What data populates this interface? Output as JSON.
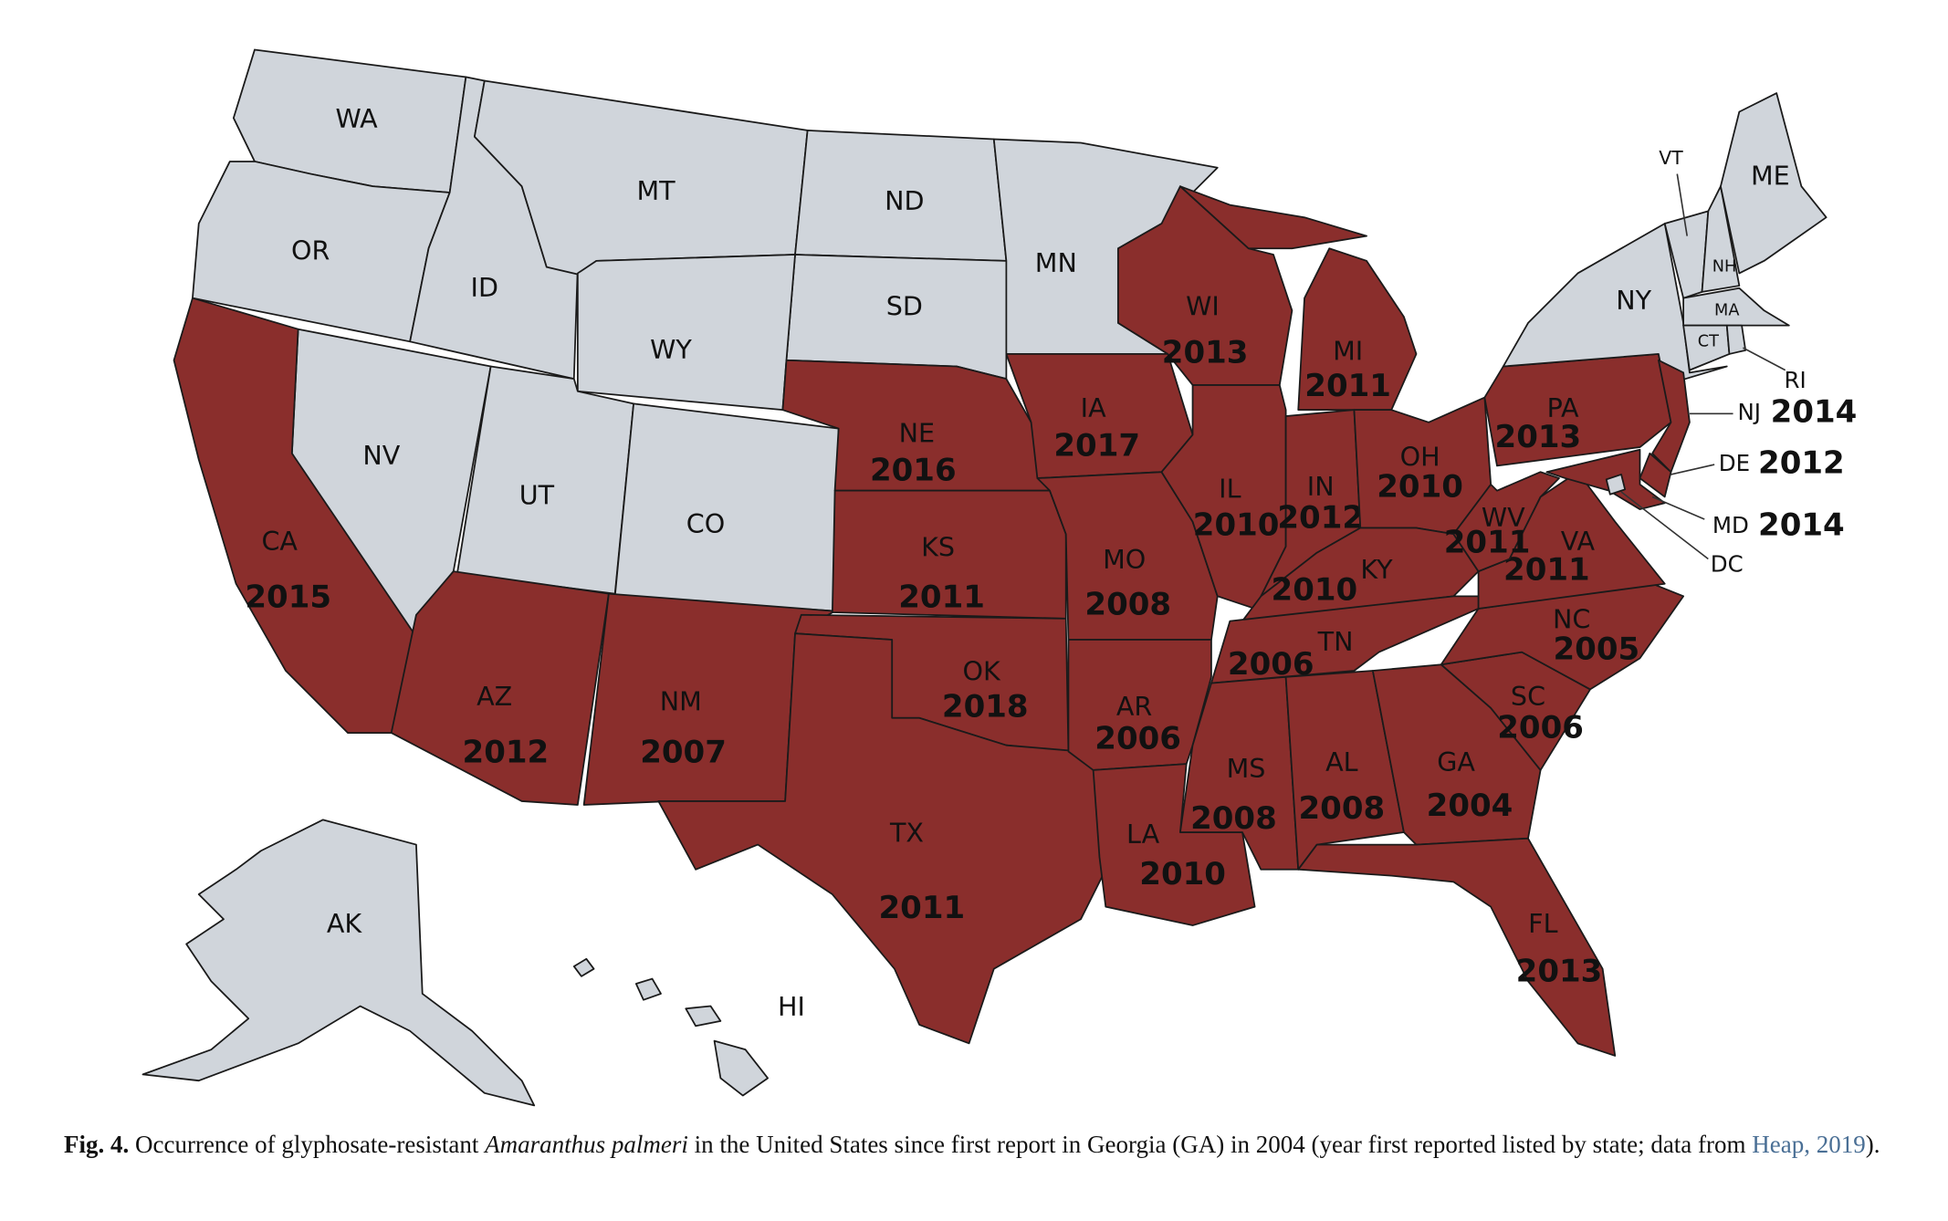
{
  "map": {
    "fill_color": "#8a2e2c",
    "empty_color": "#d0d5db",
    "states": [
      {
        "abbr": "WA"
      },
      {
        "abbr": "OR"
      },
      {
        "abbr": "ID"
      },
      {
        "abbr": "MT"
      },
      {
        "abbr": "ND"
      },
      {
        "abbr": "SD"
      },
      {
        "abbr": "WY"
      },
      {
        "abbr": "NV"
      },
      {
        "abbr": "UT"
      },
      {
        "abbr": "CO"
      },
      {
        "abbr": "CA",
        "year": 2015
      },
      {
        "abbr": "AZ",
        "year": 2012
      },
      {
        "abbr": "NM",
        "year": 2007
      },
      {
        "abbr": "NE",
        "year": 2016
      },
      {
        "abbr": "KS",
        "year": 2011
      },
      {
        "abbr": "OK",
        "year": 2018
      },
      {
        "abbr": "TX",
        "year": 2011
      },
      {
        "abbr": "MN"
      },
      {
        "abbr": "IA",
        "year": 2017
      },
      {
        "abbr": "MO",
        "year": 2008
      },
      {
        "abbr": "AR",
        "year": 2006
      },
      {
        "abbr": "LA",
        "year": 2010
      },
      {
        "abbr": "WI",
        "year": 2013
      },
      {
        "abbr": "IL",
        "year": 2010
      },
      {
        "abbr": "MI",
        "year": 2011
      },
      {
        "abbr": "IN",
        "year": 2012
      },
      {
        "abbr": "OH",
        "year": 2010
      },
      {
        "abbr": "KY",
        "year": 2010
      },
      {
        "abbr": "TN",
        "year": 2006
      },
      {
        "abbr": "MS",
        "year": 2008
      },
      {
        "abbr": "AL",
        "year": 2008
      },
      {
        "abbr": "GA",
        "year": 2004
      },
      {
        "abbr": "FL",
        "year": 2013
      },
      {
        "abbr": "SC",
        "year": 2006
      },
      {
        "abbr": "NC",
        "year": 2005
      },
      {
        "abbr": "VA",
        "year": 2011
      },
      {
        "abbr": "WV",
        "year": 2011
      },
      {
        "abbr": "PA",
        "year": 2013
      },
      {
        "abbr": "NY"
      },
      {
        "abbr": "NJ",
        "year": 2014
      },
      {
        "abbr": "DE",
        "year": 2012
      },
      {
        "abbr": "MD",
        "year": 2014
      },
      {
        "abbr": "DC"
      },
      {
        "abbr": "VT"
      },
      {
        "abbr": "NH"
      },
      {
        "abbr": "ME"
      },
      {
        "abbr": "MA"
      },
      {
        "abbr": "CT"
      },
      {
        "abbr": "RI"
      },
      {
        "abbr": "AK"
      },
      {
        "abbr": "HI"
      }
    ]
  },
  "caption": {
    "label": "Fig. 4.",
    "text_before": " Occurrence of glyphosate-resistant ",
    "species": "Amaranthus palmeri",
    "text_after": " in the United States since first report in Georgia (GA) in 2004 (year first reported listed by state; data from ",
    "link": "Heap, 2019",
    "end": ")."
  }
}
